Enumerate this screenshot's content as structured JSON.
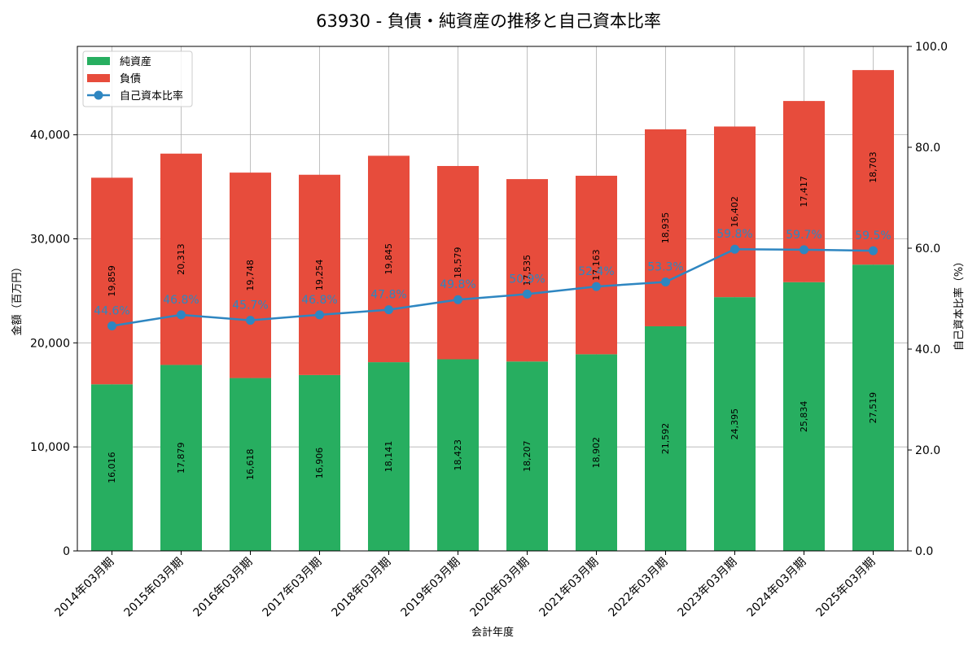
{
  "chart_data": {
    "type": "bar",
    "title": "63930 - 負債・純資産の推移と自己資本比率",
    "xlabel": "会計年度",
    "ylabel": "金額（百万円）",
    "y2label": "自己資本比率（%）",
    "ylim": [
      0,
      48500
    ],
    "y2lim": [
      0,
      100
    ],
    "yticks": [
      "0",
      "10,000",
      "20,000",
      "30,000",
      "40,000"
    ],
    "y2ticks": [
      "0.0",
      "20.0",
      "40.0",
      "60.0",
      "80.0",
      "100.0"
    ],
    "grid": true,
    "legend_position": "top-left",
    "stacked": true,
    "categories": [
      "2014年03月期",
      "2015年03月期",
      "2016年03月期",
      "2017年03月期",
      "2018年03月期",
      "2019年03月期",
      "2020年03月期",
      "2021年03月期",
      "2022年03月期",
      "2023年03月期",
      "2024年03月期",
      "2025年03月期"
    ],
    "series": [
      {
        "name": "純資産",
        "color": "#27ae60",
        "values": [
          16016,
          17879,
          16618,
          16906,
          18141,
          18423,
          18207,
          18902,
          21592,
          24395,
          25834,
          27519
        ],
        "labels": [
          "16,016",
          "17,879",
          "16,618",
          "16,906",
          "18,141",
          "18,423",
          "18,207",
          "18,902",
          "21,592",
          "24,395",
          "25,834",
          "27,519"
        ]
      },
      {
        "name": "負債",
        "color": "#e74c3c",
        "values": [
          19859,
          20313,
          19748,
          19254,
          19845,
          18579,
          17535,
          17163,
          18935,
          16402,
          17417,
          18703
        ],
        "labels": [
          "19,859",
          "20,313",
          "19,748",
          "19,254",
          "19,845",
          "18,579",
          "17,535",
          "17,163",
          "18,935",
          "16,402",
          "17,417",
          "18,703"
        ]
      }
    ],
    "ratio_series": {
      "name": "自己資本比率",
      "color": "#2e86c1",
      "values": [
        44.6,
        46.8,
        45.7,
        46.8,
        47.8,
        49.8,
        50.9,
        52.4,
        53.3,
        59.8,
        59.7,
        59.5
      ],
      "labels": [
        "44.6%",
        "46.8%",
        "45.7%",
        "46.8%",
        "47.8%",
        "49.8%",
        "50.9%",
        "52.4%",
        "53.3%",
        "59.8%",
        "59.7%",
        "59.5%"
      ]
    }
  }
}
